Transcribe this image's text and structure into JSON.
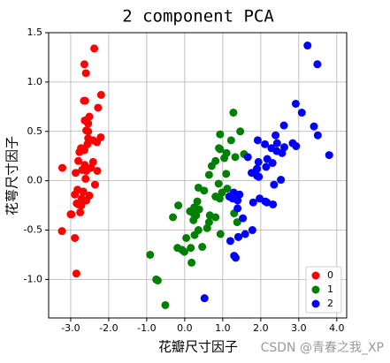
{
  "chart_data": {
    "type": "scatter",
    "title": "2 component PCA",
    "x_label": "花瓣尺寸因子",
    "y_label": "花萼尺寸因子",
    "watermark": "CSDN @青春之我_XP",
    "xlim": [
      -3.58,
      4.26
    ],
    "ylim": [
      -1.39,
      1.5
    ],
    "xticks": [
      {
        "value": -3,
        "label": "-3.0"
      },
      {
        "value": -2,
        "label": "-2.0"
      },
      {
        "value": -1,
        "label": "-1.0"
      },
      {
        "value": 0,
        "label": "0.0"
      },
      {
        "value": 1,
        "label": "1.0"
      },
      {
        "value": 2,
        "label": "2.0"
      },
      {
        "value": 3,
        "label": "3.0"
      },
      {
        "value": 4,
        "label": "4.0"
      }
    ],
    "yticks": [
      {
        "value": -1,
        "label": "-1.0"
      },
      {
        "value": -0.5,
        "label": "-0.5"
      },
      {
        "value": 0,
        "label": "0.0"
      },
      0.5,
      {
        "value": 1,
        "label": "1.0"
      },
      1.5
    ],
    "grid": true,
    "legend_position": "lower-right",
    "series": [
      {
        "name": "0",
        "color": "#ff0000",
        "x": [
          -2.68,
          -2.71,
          -2.89,
          -2.75,
          -2.73,
          -2.28,
          -2.82,
          -2.63,
          -2.89,
          -2.67,
          -2.51,
          -2.61,
          -2.79,
          -3.23,
          -2.64,
          -2.38,
          -2.62,
          -2.65,
          -2.2,
          -2.59,
          -2.31,
          -2.54,
          -3.22,
          -2.3,
          -2.36,
          -2.51,
          -2.47,
          -2.56,
          -2.64,
          -2.63,
          -2.59,
          -2.41,
          -2.65,
          -2.6,
          -2.67,
          -2.87,
          -2.63,
          -2.8,
          -2.98,
          -2.59,
          -2.77,
          -2.85,
          -3,
          -2.41,
          -2.21,
          -2.72,
          -2.54,
          -2.84,
          -2.54,
          -2.7
        ],
        "values": [
          0.32,
          -0.18,
          -0.14,
          -0.32,
          0.33,
          0.74,
          -0.09,
          0.16,
          -0.58,
          -0.11,
          0.65,
          0.02,
          -0.24,
          -0.51,
          1.18,
          1.34,
          0.81,
          0.31,
          0.87,
          0.51,
          0.39,
          0.43,
          0.13,
          0.1,
          -0.04,
          -0.15,
          0.13,
          0.37,
          0.31,
          -0.2,
          -0.2,
          0.41,
          0.81,
          1.09,
          -0.11,
          0.08,
          0.61,
          0.2,
          -0.34,
          0.1,
          0.29,
          -0.94,
          -0.34,
          0.19,
          0.44,
          -0.25,
          0.5,
          -0.23,
          0.58,
          0.11
        ]
      },
      {
        "name": "1",
        "color": "#008000",
        "x": [
          1.28,
          0.93,
          1.46,
          0.18,
          1.09,
          0.64,
          1.1,
          -0.75,
          1.04,
          -0.01,
          -0.51,
          0.51,
          0.26,
          0.98,
          -0.17,
          0.93,
          0.66,
          0.23,
          0.94,
          0.04,
          1.12,
          0.36,
          1.3,
          0.92,
          0.71,
          0.9,
          1.33,
          1.56,
          0.81,
          -0.31,
          -0.07,
          -0.19,
          0.14,
          1.38,
          0.59,
          0.81,
          1.22,
          0.81,
          0.25,
          0.16,
          0.46,
          0.89,
          0.23,
          -0.71,
          0.36,
          0.33,
          0.38,
          0.64,
          -0.91,
          0.3
        ],
        "values": [
          0.69,
          0.32,
          0.5,
          -0.83,
          0.07,
          -0.42,
          0.28,
          -1,
          0.23,
          -0.72,
          -1.26,
          -0.1,
          -0.55,
          -0.12,
          -0.25,
          0.47,
          -0.35,
          -0.33,
          -0.54,
          -0.58,
          -0.08,
          -0.07,
          -0.33,
          -0.18,
          0.15,
          0.33,
          0.24,
          0.27,
          -0.16,
          -0.37,
          -0.7,
          -0.68,
          -0.31,
          -0.42,
          -0.48,
          0.2,
          0.41,
          -0.37,
          -0.27,
          -0.68,
          -0.67,
          -0.03,
          -0.4,
          -1.01,
          -0.5,
          -0.21,
          -0.29,
          0.06,
          -0.75,
          -0.35
        ]
      },
      {
        "name": "2",
        "color": "#0000ff",
        "x": [
          2.53,
          1.41,
          2.62,
          1.97,
          2.35,
          3.4,
          0.52,
          2.93,
          2.32,
          2.92,
          1.66,
          1.8,
          2.17,
          1.34,
          1.59,
          1.9,
          1.95,
          3.49,
          3.8,
          1.3,
          2.43,
          1.2,
          3.5,
          1.39,
          2.28,
          2.61,
          1.26,
          1.29,
          2.12,
          2.39,
          2.84,
          3.23,
          2.16,
          1.44,
          1.78,
          3.08,
          2.14,
          1.9,
          1.17,
          2.11,
          2.31,
          1.92,
          1.41,
          2.56,
          2.42,
          1.94,
          1.53,
          1.76,
          1.9,
          1.39
        ],
        "values": [
          0.01,
          -0.57,
          0.34,
          -0.18,
          -0.04,
          0.55,
          -1.19,
          0.35,
          -0.24,
          0.78,
          0.24,
          -0.22,
          0.22,
          -0.78,
          -0.54,
          0.12,
          0.04,
          1.18,
          0.26,
          -0.76,
          0.38,
          -0.61,
          0.46,
          -0.2,
          0.33,
          0.56,
          -0.18,
          -0.12,
          -0.21,
          0.46,
          0.38,
          1.37,
          -0.22,
          -0.14,
          -0.5,
          0.69,
          0.14,
          0.05,
          -0.16,
          0.37,
          0.18,
          0.41,
          -0.57,
          0.28,
          0.3,
          0.19,
          -0.38,
          0.08,
          0.12,
          -0.28
        ]
      }
    ]
  }
}
